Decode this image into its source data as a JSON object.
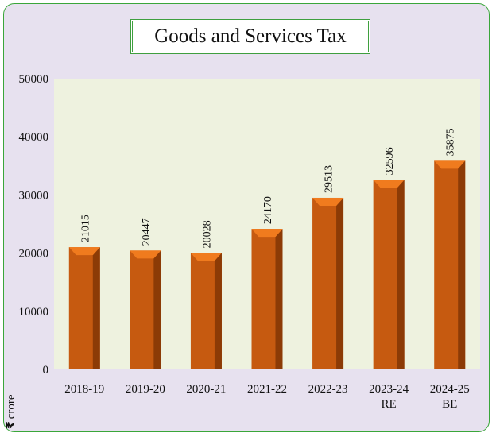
{
  "chart_data": {
    "type": "bar",
    "title": "Goods and Services Tax",
    "categories": [
      [
        "2018-19"
      ],
      [
        "2019-20"
      ],
      [
        "2020-21"
      ],
      [
        "2021-22"
      ],
      [
        "2022-23"
      ],
      [
        "2023-24",
        "RE"
      ],
      [
        "2024-25",
        "BE"
      ]
    ],
    "values": [
      21015,
      20447,
      20028,
      24170,
      29513,
      32596,
      35875
    ],
    "ylim": [
      0,
      50000
    ],
    "yticks": [
      0,
      10000,
      20000,
      30000,
      40000,
      50000
    ],
    "unit": {
      "symbol": "₹",
      "text": "crore"
    },
    "grid": false,
    "legend": "none"
  },
  "colors": {
    "plot_background": "#eef2df",
    "frame_background": "#e7e1ef",
    "frame_border": "#3aa63a",
    "bar_front": "#c65a10",
    "bar_side": "#8c3b06",
    "bar_top": "#f07b1e"
  }
}
